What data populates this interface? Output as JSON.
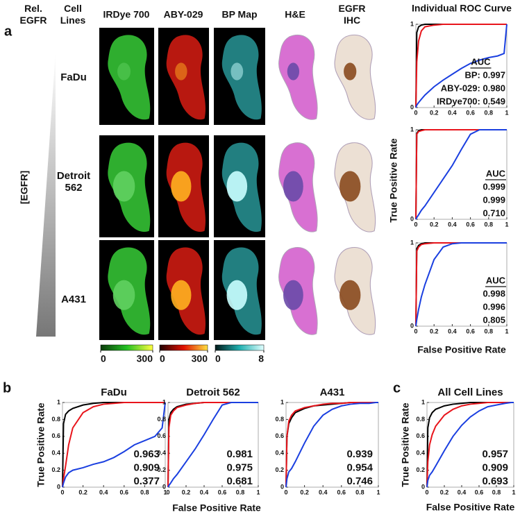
{
  "panel_a": {
    "label": "a",
    "egfr_header": "Rel. EGFR",
    "cell_lines_header": "Cell Lines",
    "channels": [
      "IRDye 700",
      "ABY-029",
      "BP Map",
      "H&E",
      "EGFR IHC"
    ],
    "rows": [
      "FaDu",
      "Detroit 562",
      "A431"
    ],
    "gradient_label": "[EGFR]",
    "roc_title": "Individual ROC Curve",
    "y_label": "True Positive Rate",
    "x_label": "False Positive Rate",
    "colorbars": [
      {
        "lim": [
          0,
          300
        ],
        "ticks": [
          0,
          300
        ],
        "colors": [
          "#0a3a0a",
          "#22c022",
          "#ffff40"
        ]
      },
      {
        "lim": [
          0,
          300
        ],
        "ticks": [
          0,
          300
        ],
        "colors": [
          "#200000",
          "#e01000",
          "#ffe040"
        ]
      },
      {
        "lim": [
          0,
          8
        ],
        "ticks": [
          0,
          8
        ],
        "colors": [
          "#001818",
          "#20b0b0",
          "#e0ffff"
        ]
      }
    ]
  },
  "panel_b": {
    "label": "b",
    "x_label": "False Positive Rate"
  },
  "panel_c": {
    "label": "c"
  },
  "chart_data": [
    {
      "type": "line",
      "annotation_title": "AUC",
      "x": [
        0,
        0.01,
        0.03,
        0.06,
        0.1,
        0.2,
        0.3,
        0.4,
        0.5,
        0.6,
        0.7,
        0.8,
        0.9,
        0.97,
        1
      ],
      "xlim": [
        0,
        1
      ],
      "ylim": [
        0,
        1
      ],
      "xticks": [
        0,
        0.2,
        0.4,
        0.6,
        0.8,
        1
      ],
      "yticks": [
        0,
        1
      ],
      "series": [
        {
          "name": "BP",
          "color": "#000000",
          "values": [
            0,
            0.9,
            0.97,
            0.99,
            1,
            1,
            1,
            1,
            1,
            1,
            1,
            1,
            1,
            1,
            1
          ],
          "auc": 0.997,
          "auc_label": "BP: 0.997"
        },
        {
          "name": "ABY-029",
          "color": "#e8141b",
          "values": [
            0,
            0.55,
            0.8,
            0.92,
            0.97,
            0.99,
            1,
            1,
            1,
            1,
            1,
            1,
            1,
            1,
            1
          ],
          "auc": 0.98,
          "auc_label": "ABY-029: 0.980"
        },
        {
          "name": "IRDye700",
          "color": "#1a3fe0",
          "values": [
            0,
            0.03,
            0.06,
            0.1,
            0.15,
            0.25,
            0.33,
            0.4,
            0.47,
            0.53,
            0.57,
            0.6,
            0.62,
            0.65,
            1
          ],
          "auc": 0.549,
          "auc_label": "IRDye700: 0.549"
        }
      ]
    },
    {
      "type": "line",
      "annotation_title": "AUC",
      "x": [
        0,
        0.01,
        0.03,
        0.06,
        0.1,
        0.2,
        0.3,
        0.4,
        0.5,
        0.6,
        0.7,
        0.8,
        0.9,
        0.97,
        1
      ],
      "xlim": [
        0,
        1
      ],
      "ylim": [
        0,
        1
      ],
      "xticks": [
        0,
        0.2,
        0.4,
        0.6,
        0.8,
        1
      ],
      "yticks": [
        0,
        1
      ],
      "series": [
        {
          "color": "#000000",
          "values": [
            0,
            0.96,
            0.99,
            1,
            1,
            1,
            1,
            1,
            1,
            1,
            1,
            1,
            1,
            1,
            1
          ],
          "auc": 0.999,
          "auc_label": "0.999"
        },
        {
          "color": "#e8141b",
          "values": [
            0,
            0.95,
            0.98,
            0.99,
            1,
            1,
            1,
            1,
            1,
            1,
            1,
            1,
            1,
            1,
            1
          ],
          "auc": 0.999,
          "auc_label": "0.999"
        },
        {
          "color": "#1a3fe0",
          "values": [
            0,
            0.02,
            0.05,
            0.1,
            0.15,
            0.3,
            0.45,
            0.6,
            0.78,
            0.95,
            1,
            1,
            1,
            1,
            1
          ],
          "auc": 0.71,
          "auc_label": "0.710"
        }
      ]
    },
    {
      "type": "line",
      "annotation_title": "AUC",
      "x": [
        0,
        0.01,
        0.03,
        0.06,
        0.1,
        0.2,
        0.3,
        0.4,
        0.5,
        0.6,
        0.7,
        0.8,
        0.9,
        0.97,
        1
      ],
      "xlim": [
        0,
        1
      ],
      "ylim": [
        0,
        1
      ],
      "xticks": [
        0,
        0.2,
        0.4,
        0.6,
        0.8,
        1
      ],
      "yticks": [
        0,
        1
      ],
      "series": [
        {
          "color": "#000000",
          "values": [
            0,
            0.93,
            0.97,
            0.99,
            1,
            1,
            1,
            1,
            1,
            1,
            1,
            1,
            1,
            1,
            1
          ],
          "auc": 0.998,
          "auc_label": "0.998"
        },
        {
          "color": "#e8141b",
          "values": [
            0,
            0.9,
            0.95,
            0.98,
            0.99,
            1,
            1,
            1,
            1,
            1,
            1,
            1,
            1,
            1,
            1
          ],
          "auc": 0.996,
          "auc_label": "0.996"
        },
        {
          "color": "#1a3fe0",
          "values": [
            0,
            0.08,
            0.2,
            0.35,
            0.5,
            0.8,
            0.95,
            0.99,
            1,
            1,
            1,
            1,
            1,
            1,
            1
          ],
          "auc": 0.805,
          "auc_label": "0.805"
        }
      ]
    },
    {
      "type": "line",
      "title": "FaDu",
      "y_label": "True Positive Rate",
      "x": [
        0,
        0.01,
        0.03,
        0.06,
        0.1,
        0.2,
        0.3,
        0.4,
        0.5,
        0.6,
        0.7,
        0.8,
        0.9,
        0.97,
        1
      ],
      "xlim": [
        0,
        1
      ],
      "ylim": [
        0,
        1
      ],
      "xticks": [
        0,
        0.2,
        0.4,
        0.6,
        0.8,
        1
      ],
      "yticks": [
        0,
        0.2,
        0.4,
        0.6,
        0.8,
        1
      ],
      "series": [
        {
          "color": "#000000",
          "values": [
            0,
            0.75,
            0.86,
            0.9,
            0.93,
            0.97,
            0.99,
            1,
            1,
            1,
            1,
            1,
            1,
            1,
            1
          ],
          "auc": 0.963,
          "auc_label": "0.963"
        },
        {
          "color": "#e8141b",
          "values": [
            0,
            0.1,
            0.25,
            0.5,
            0.7,
            0.88,
            0.95,
            0.98,
            0.99,
            1,
            1,
            1,
            1,
            1,
            1
          ],
          "auc": 0.909,
          "auc_label": "0.909"
        },
        {
          "color": "#1a3fe0",
          "values": [
            0,
            0.05,
            0.12,
            0.17,
            0.2,
            0.23,
            0.27,
            0.3,
            0.35,
            0.42,
            0.5,
            0.55,
            0.6,
            0.7,
            1
          ],
          "auc": 0.377,
          "auc_label": "0.377"
        }
      ]
    },
    {
      "type": "line",
      "title": "Detroit 562",
      "x": [
        0,
        0.01,
        0.03,
        0.06,
        0.1,
        0.2,
        0.3,
        0.4,
        0.5,
        0.6,
        0.7,
        0.8,
        0.9,
        0.97,
        1
      ],
      "xlim": [
        0,
        1
      ],
      "ylim": [
        0,
        1
      ],
      "xticks": [
        0,
        0.2,
        0.4,
        0.6,
        0.8,
        1
      ],
      "yticks": [
        0,
        0.2,
        0.4,
        0.6,
        0.8,
        1
      ],
      "series": [
        {
          "color": "#000000",
          "values": [
            0,
            0.8,
            0.88,
            0.92,
            0.95,
            0.98,
            0.99,
            1,
            1,
            1,
            1,
            1,
            1,
            1,
            1
          ],
          "auc": 0.981,
          "auc_label": "0.981"
        },
        {
          "color": "#e8141b",
          "values": [
            0,
            0.7,
            0.85,
            0.9,
            0.94,
            0.97,
            0.99,
            1,
            1,
            1,
            1,
            1,
            1,
            1,
            1
          ],
          "auc": 0.975,
          "auc_label": "0.975"
        },
        {
          "color": "#1a3fe0",
          "values": [
            0,
            0.02,
            0.05,
            0.1,
            0.15,
            0.3,
            0.45,
            0.62,
            0.8,
            0.97,
            1,
            1,
            1,
            1,
            1
          ],
          "auc": 0.681,
          "auc_label": "0.681"
        }
      ]
    },
    {
      "type": "line",
      "title": "A431",
      "x": [
        0,
        0.01,
        0.03,
        0.06,
        0.1,
        0.2,
        0.3,
        0.4,
        0.5,
        0.6,
        0.7,
        0.8,
        0.9,
        0.97,
        1
      ],
      "xlim": [
        0,
        1
      ],
      "ylim": [
        0,
        1
      ],
      "xticks": [
        0,
        0.2,
        0.4,
        0.6,
        0.8,
        1
      ],
      "yticks": [
        0,
        0.2,
        0.4,
        0.6,
        0.8,
        1
      ],
      "series": [
        {
          "color": "#000000",
          "values": [
            0,
            0.6,
            0.75,
            0.82,
            0.88,
            0.93,
            0.96,
            0.97,
            0.98,
            0.99,
            1,
            1,
            1,
            1,
            1
          ],
          "auc": 0.939,
          "auc_label": "0.939"
        },
        {
          "color": "#e8141b",
          "values": [
            0,
            0.6,
            0.78,
            0.85,
            0.9,
            0.94,
            0.96,
            0.98,
            0.99,
            0.99,
            1,
            1,
            1,
            1,
            1
          ],
          "auc": 0.954,
          "auc_label": "0.954"
        },
        {
          "color": "#1a3fe0",
          "values": [
            0,
            0.1,
            0.18,
            0.22,
            0.3,
            0.52,
            0.72,
            0.85,
            0.92,
            0.96,
            0.98,
            0.99,
            0.99,
            1,
            1
          ],
          "auc": 0.746,
          "auc_label": "0.746"
        }
      ]
    },
    {
      "type": "line",
      "title": "All Cell Lines",
      "y_label": "True Positive Rate",
      "x_label": "False Positive Rate",
      "x": [
        0,
        0.01,
        0.03,
        0.06,
        0.1,
        0.2,
        0.3,
        0.4,
        0.5,
        0.6,
        0.7,
        0.8,
        0.9,
        0.97,
        1
      ],
      "xlim": [
        0,
        1
      ],
      "ylim": [
        0,
        1
      ],
      "xticks": [
        0,
        0.2,
        0.4,
        0.6,
        0.8,
        1
      ],
      "yticks": [
        0,
        0.2,
        0.4,
        0.6,
        0.8,
        1
      ],
      "series": [
        {
          "color": "#000000",
          "values": [
            0,
            0.7,
            0.82,
            0.88,
            0.92,
            0.96,
            0.98,
            0.99,
            1,
            1,
            1,
            1,
            1,
            1,
            1
          ],
          "auc": 0.957,
          "auc_label": "0.957"
        },
        {
          "color": "#e8141b",
          "values": [
            0,
            0.3,
            0.5,
            0.62,
            0.72,
            0.85,
            0.92,
            0.96,
            0.98,
            0.99,
            1,
            1,
            1,
            1,
            1
          ],
          "auc": 0.909,
          "auc_label": "0.909"
        },
        {
          "color": "#1a3fe0",
          "values": [
            0,
            0.08,
            0.14,
            0.18,
            0.25,
            0.43,
            0.6,
            0.73,
            0.83,
            0.9,
            0.95,
            0.97,
            0.99,
            1,
            1
          ],
          "auc": 0.693,
          "auc_label": "0.693"
        }
      ]
    }
  ]
}
